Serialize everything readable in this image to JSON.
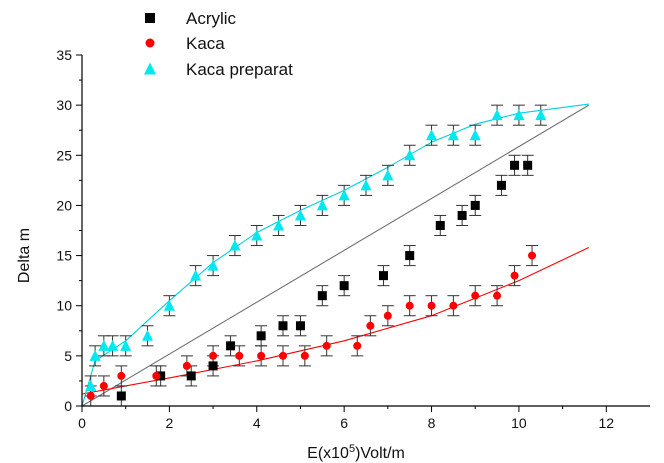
{
  "chart_data": {
    "type": "scatter",
    "xlabel": "E(x10^5)Volt/m",
    "xlabel_parts": {
      "before": "E(x10",
      "sup": "5",
      "after": ")Volt/m"
    },
    "ylabel": "Delta m",
    "xlim": [
      0,
      13
    ],
    "ylim": [
      0,
      35
    ],
    "x_ticks": [
      0,
      2,
      4,
      6,
      8,
      10,
      12
    ],
    "y_ticks": [
      0,
      5,
      10,
      15,
      20,
      25,
      30,
      35
    ],
    "legend_position": "top-left",
    "series": [
      {
        "name": "Acrylic",
        "marker": "square",
        "color": "#000000",
        "fit_color": "#707070",
        "fit": [
          [
            0,
            0
          ],
          [
            11.6,
            30
          ]
        ],
        "error": 1,
        "points": [
          [
            0.9,
            1
          ],
          [
            1.8,
            3
          ],
          [
            2.5,
            3
          ],
          [
            3.0,
            4
          ],
          [
            3.4,
            6
          ],
          [
            4.1,
            7
          ],
          [
            4.6,
            8
          ],
          [
            5.0,
            8
          ],
          [
            5.5,
            11
          ],
          [
            6.0,
            12
          ],
          [
            6.9,
            13
          ],
          [
            7.5,
            15
          ],
          [
            8.2,
            18
          ],
          [
            8.7,
            19
          ],
          [
            9.0,
            20
          ],
          [
            9.6,
            22
          ],
          [
            9.9,
            24
          ],
          [
            10.2,
            24
          ]
        ]
      },
      {
        "name": "Kaca",
        "marker": "circle",
        "color": "#ff0000",
        "fit_color": "#ff0000",
        "fit": [
          [
            0,
            1.2
          ],
          [
            2,
            2.8
          ],
          [
            4,
            4.5
          ],
          [
            6,
            6.5
          ],
          [
            8,
            9.0
          ],
          [
            10,
            12.5
          ],
          [
            11.6,
            15.8
          ]
        ],
        "error": 1,
        "points": [
          [
            0.2,
            1
          ],
          [
            0.5,
            2
          ],
          [
            0.9,
            3
          ],
          [
            1.7,
            3
          ],
          [
            2.4,
            4
          ],
          [
            3.0,
            5
          ],
          [
            3.6,
            5
          ],
          [
            4.1,
            5
          ],
          [
            4.6,
            5
          ],
          [
            5.1,
            5
          ],
          [
            5.6,
            6
          ],
          [
            6.3,
            6
          ],
          [
            6.6,
            8
          ],
          [
            7.0,
            9
          ],
          [
            7.5,
            10
          ],
          [
            8.0,
            10
          ],
          [
            8.5,
            10
          ],
          [
            9.0,
            11
          ],
          [
            9.5,
            11
          ],
          [
            9.9,
            13
          ],
          [
            10.3,
            15
          ]
        ]
      },
      {
        "name": "Kaca preparat",
        "marker": "triangle",
        "color": "#00e8f0",
        "fit_color": "#00d0e0",
        "fit": [
          [
            0,
            0
          ],
          [
            0.3,
            4.5
          ],
          [
            1,
            6.5
          ],
          [
            2,
            10.5
          ],
          [
            3,
            14.3
          ],
          [
            4,
            17.3
          ],
          [
            5,
            19.5
          ],
          [
            6,
            21.5
          ],
          [
            7,
            23.8
          ],
          [
            8,
            26.3
          ],
          [
            9,
            28.1
          ],
          [
            10,
            29.2
          ],
          [
            11.6,
            30.1
          ]
        ],
        "error": 1,
        "points": [
          [
            0.2,
            2
          ],
          [
            0.3,
            5
          ],
          [
            0.5,
            6
          ],
          [
            0.7,
            6
          ],
          [
            1.0,
            6
          ],
          [
            1.5,
            7
          ],
          [
            2.0,
            10
          ],
          [
            2.6,
            13
          ],
          [
            3.0,
            14
          ],
          [
            3.5,
            16
          ],
          [
            4.0,
            17
          ],
          [
            4.5,
            18
          ],
          [
            5.0,
            19
          ],
          [
            5.5,
            20
          ],
          [
            6.0,
            21
          ],
          [
            6.5,
            22
          ],
          [
            7.0,
            23
          ],
          [
            7.5,
            25
          ],
          [
            8.0,
            27
          ],
          [
            8.5,
            27
          ],
          [
            9.0,
            27
          ],
          [
            9.5,
            29
          ],
          [
            10.0,
            29
          ],
          [
            10.5,
            29
          ]
        ]
      }
    ]
  }
}
